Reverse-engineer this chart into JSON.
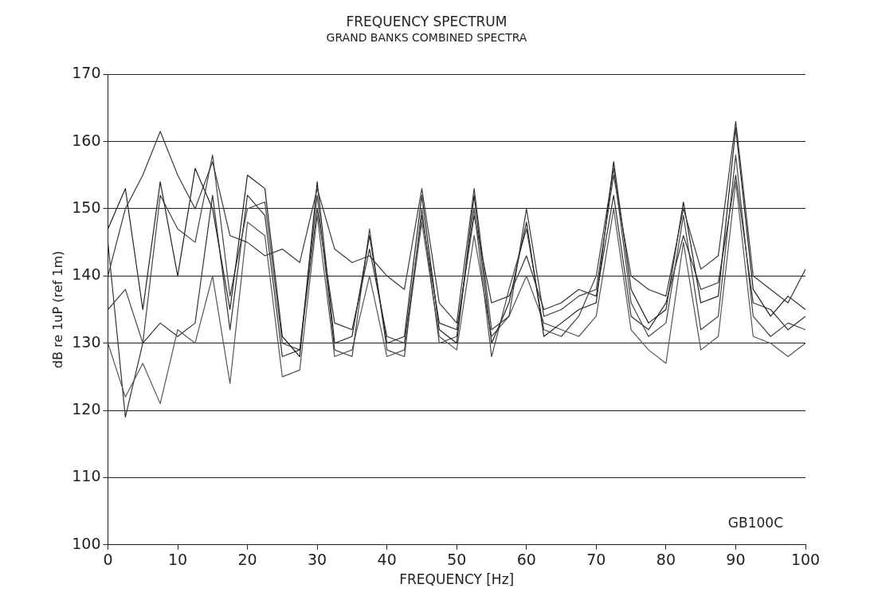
{
  "chart_data": {
    "type": "line",
    "title": "FREQUENCY SPECTRUM",
    "subtitle": "GRAND BANKS COMBINED SPECTRA",
    "xlabel": "FREQUENCY [Hz]",
    "ylabel": "dB re 1uP (ref 1m)",
    "annotations": [
      "GB100C"
    ],
    "x": [
      0,
      2.5,
      5,
      7.5,
      10,
      12.5,
      15,
      17.5,
      20,
      22.5,
      25,
      27.5,
      30,
      32.5,
      35,
      37.5,
      40,
      42.5,
      45,
      47.5,
      50,
      52.5,
      55,
      57.5,
      60,
      62.5,
      65,
      67.5,
      70,
      72.5,
      75,
      77.5,
      80,
      82.5,
      85,
      87.5,
      90,
      92.5,
      95,
      97.5,
      100
    ],
    "series": [
      {
        "color": "#3a3a3a",
        "values": [
          140,
          150,
          155,
          161.5,
          155,
          150,
          157,
          146,
          145,
          143,
          144,
          142,
          153,
          144,
          142,
          143,
          140,
          138,
          153,
          136,
          133,
          153,
          132,
          134,
          150,
          134,
          135,
          137,
          138,
          155,
          140,
          138,
          137,
          150,
          141,
          143,
          163,
          140,
          138,
          136,
          141
        ]
      },
      {
        "color": "#222222",
        "values": [
          147,
          153,
          135,
          154,
          140,
          156,
          150,
          135,
          155,
          153,
          131,
          128,
          154,
          130,
          131,
          146,
          130,
          131,
          152,
          132,
          130,
          152,
          130,
          136,
          148,
          131,
          133,
          135,
          136,
          157,
          138,
          133,
          135,
          151,
          136,
          137,
          162,
          138,
          134,
          137,
          135
        ]
      },
      {
        "color": "#444444",
        "values": [
          135,
          138,
          130,
          152,
          147,
          145,
          158,
          137,
          150,
          151,
          130,
          129,
          152,
          129,
          128,
          147,
          129,
          128,
          150,
          130,
          131,
          150,
          128,
          138,
          147,
          132,
          131,
          134,
          140,
          156,
          136,
          131,
          133,
          149,
          132,
          134,
          158,
          134,
          131,
          133,
          132
        ]
      },
      {
        "color": "#555555",
        "values": [
          130,
          122,
          127,
          121,
          132,
          130,
          140,
          124,
          148,
          146,
          125,
          126,
          149,
          128,
          129,
          140,
          128,
          129,
          148,
          131,
          129,
          146,
          131,
          134,
          140,
          133,
          132,
          131,
          134,
          150,
          132,
          129,
          127,
          145,
          129,
          131,
          154,
          131,
          130,
          128,
          130
        ]
      },
      {
        "color": "#333333",
        "values": [
          145,
          119,
          130,
          133,
          131,
          133,
          152,
          132,
          152,
          149,
          128,
          129,
          150,
          133,
          132,
          144,
          131,
          130,
          149,
          133,
          132,
          149,
          136,
          137,
          143,
          135,
          136,
          138,
          137,
          152,
          134,
          132,
          136,
          146,
          138,
          139,
          155,
          136,
          135,
          132,
          134
        ]
      }
    ],
    "xlim": [
      0,
      100
    ],
    "xticks": [
      0,
      10,
      20,
      30,
      40,
      50,
      60,
      70,
      80,
      90,
      100
    ],
    "ylim": [
      100,
      170
    ],
    "yticks": [
      100,
      110,
      120,
      130,
      140,
      150,
      160,
      170
    ],
    "grid": "y",
    "legend": false,
    "marker": "none",
    "line_style": "solid"
  }
}
